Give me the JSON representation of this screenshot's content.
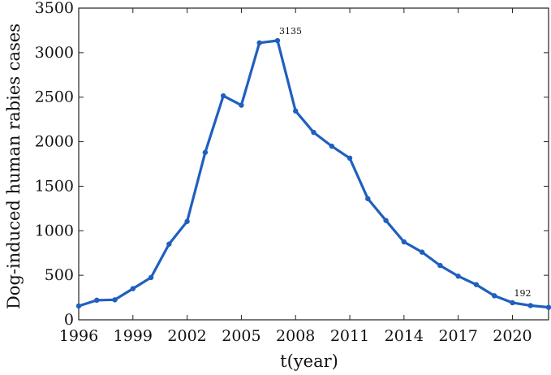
{
  "chart_data": {
    "type": "line",
    "xlabel": "t(year)",
    "ylabel": "Dog-induced human rabies cases",
    "xlim": [
      1996,
      2022
    ],
    "ylim": [
      0,
      3500
    ],
    "x_ticks": [
      1996,
      1999,
      2002,
      2005,
      2008,
      2011,
      2014,
      2017,
      2020
    ],
    "y_ticks": [
      0,
      500,
      1000,
      1500,
      2000,
      2500,
      3000,
      3500
    ],
    "grid": false,
    "line_color": "#1f5fbf",
    "series": [
      {
        "x": [
          1996,
          1997,
          1998,
          1999,
          2000,
          2001,
          2002,
          2003,
          2004,
          2005,
          2006,
          2007,
          2008,
          2009,
          2010,
          2011,
          2012,
          2013,
          2014,
          2015,
          2016,
          2017,
          2018,
          2019,
          2020,
          2021,
          2022
        ],
        "values": [
          155,
          220,
          225,
          350,
          475,
          850,
          1105,
          1880,
          2515,
          2410,
          3110,
          3135,
          2345,
          2105,
          1950,
          1815,
          1360,
          1115,
          875,
          760,
          610,
          490,
          395,
          270,
          192,
          160,
          140
        ]
      }
    ],
    "annotations": [
      {
        "x": 2007,
        "y": 3135,
        "text": "3135"
      },
      {
        "x": 2020,
        "y": 192,
        "text": "192"
      }
    ]
  }
}
